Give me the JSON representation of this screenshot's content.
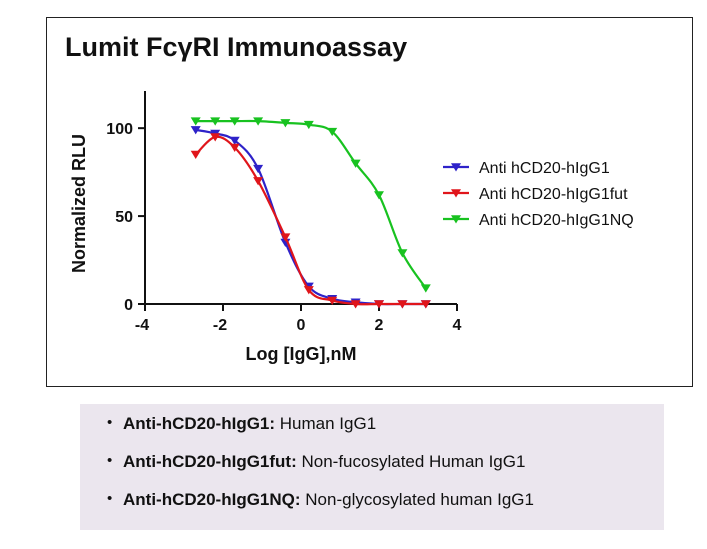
{
  "chart_data": {
    "type": "line",
    "title": "Lumit FcγRI Immunoassay",
    "xlabel": "Log [IgG],nM",
    "ylabel": "Normalized RLU",
    "xlim": [
      -4,
      4
    ],
    "ylim": [
      0,
      120
    ],
    "x_ticks": [
      "-4",
      "-2",
      "0",
      "2",
      "4"
    ],
    "y_ticks": [
      "0",
      "50",
      "100"
    ],
    "legend_position": "right",
    "grid": false,
    "series": [
      {
        "name": "Anti hCD20-hIgG1",
        "color": "#2e22c9",
        "marker": "down-triangle",
        "x": [
          -2.7,
          -2.2,
          -1.7,
          -1.1,
          -0.4,
          0.2,
          0.8,
          1.4,
          2.0,
          2.6,
          3.2
        ],
        "y": [
          99,
          97,
          93,
          77,
          35,
          10,
          3,
          1,
          0,
          0,
          0
        ]
      },
      {
        "name": "Anti hCD20-hIgG1fut",
        "color": "#e0151b",
        "marker": "down-triangle",
        "x": [
          -2.7,
          -2.2,
          -1.7,
          -1.1,
          -0.4,
          0.2,
          0.8,
          1.4,
          2.0,
          2.6,
          3.2
        ],
        "y": [
          85,
          95,
          89,
          70,
          38,
          8,
          2,
          0,
          0,
          0,
          0
        ]
      },
      {
        "name": "Anti hCD20-hIgG1NQ",
        "color": "#18c220",
        "marker": "down-triangle",
        "x": [
          -2.7,
          -2.2,
          -1.7,
          -1.1,
          -0.4,
          0.2,
          0.8,
          1.4,
          2.0,
          2.6,
          3.2
        ],
        "y": [
          104,
          104,
          104,
          104,
          103,
          102,
          98,
          80,
          62,
          29,
          9
        ]
      }
    ]
  },
  "notes": [
    {
      "bold": "Anti-hCD20-hIgG1:",
      "text": " Human IgG1"
    },
    {
      "bold": "Anti-hCD20-hIgG1fut:",
      "text": " Non-fucosylated Human IgG1"
    },
    {
      "bold": "Anti-hCD20-hIgG1NQ:",
      "text": " Non-glycosylated human IgG1"
    }
  ],
  "bullet_symbol": "•"
}
